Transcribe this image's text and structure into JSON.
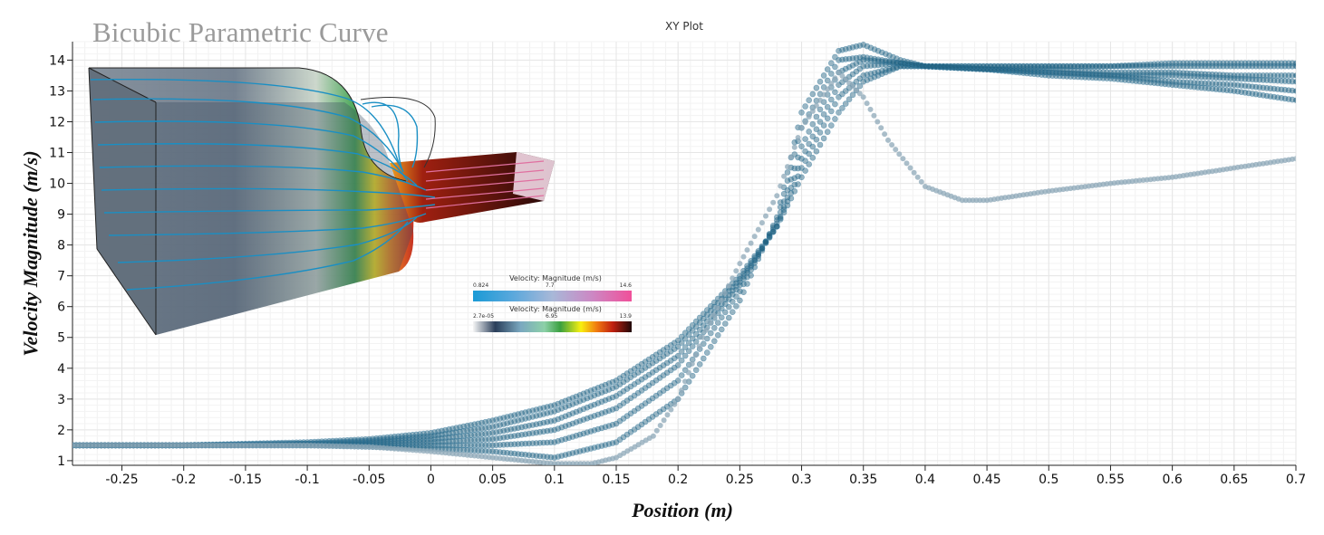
{
  "overlay_title": "Bicubic Parametric Curve",
  "plot_title": "XY Plot",
  "xlabel": "Position (m)",
  "ylabel": "Velocity Magnitude (m/s)",
  "legends": [
    {
      "title": "Velocity: Magnitude (m/s)",
      "min": "0.824",
      "mid": "7.7",
      "max": "14.6"
    },
    {
      "title": "Velocity: Magnitude (m/s)",
      "min": "2.7e-05",
      "mid": "6.95",
      "max": "13.9"
    }
  ],
  "colors": {
    "series": "#1f5f7e",
    "grid": "#e6e6e6",
    "points_light": "#8ea8b8"
  },
  "chart_data": {
    "type": "scatter",
    "title": "XY Plot",
    "xlabel": "Position (m)",
    "ylabel": "Velocity Magnitude (m/s)",
    "xlim": [
      -0.29,
      0.7
    ],
    "ylim": [
      0.85,
      14.6
    ],
    "x_ticks": [
      -0.25,
      -0.2,
      -0.15,
      -0.1,
      -0.05,
      0,
      0.05,
      0.1,
      0.15,
      0.2,
      0.25,
      0.3,
      0.35,
      0.4,
      0.45,
      0.5,
      0.55,
      0.6,
      0.65,
      0.7
    ],
    "y_ticks": [
      1,
      2,
      3,
      4,
      5,
      6,
      7,
      8,
      9,
      10,
      11,
      12,
      13,
      14
    ],
    "grid": true,
    "series": [
      {
        "x": [
          -0.29,
          -0.2,
          -0.1,
          -0.05,
          0,
          0.05,
          0.1,
          0.15,
          0.2,
          0.25,
          0.28,
          0.3,
          0.33,
          0.35,
          0.38,
          0.4,
          0.45,
          0.5,
          0.55,
          0.6,
          0.65,
          0.7
        ],
        "y": [
          1.5,
          1.5,
          1.6,
          1.7,
          1.9,
          2.3,
          2.8,
          3.6,
          4.9,
          7.0,
          8.6,
          10.2,
          12.3,
          13.3,
          13.8,
          13.8,
          13.7,
          13.5,
          13.4,
          13.2,
          13.0,
          12.7
        ]
      },
      {
        "x": [
          -0.29,
          -0.2,
          -0.1,
          -0.05,
          0,
          0.05,
          0.1,
          0.15,
          0.2,
          0.25,
          0.28,
          0.3,
          0.33,
          0.35,
          0.38,
          0.4,
          0.45,
          0.5,
          0.55,
          0.6,
          0.65,
          0.7
        ],
        "y": [
          1.5,
          1.5,
          1.55,
          1.65,
          1.8,
          2.1,
          2.6,
          3.4,
          4.7,
          6.9,
          8.6,
          10.5,
          12.8,
          13.5,
          13.8,
          13.8,
          13.7,
          13.6,
          13.5,
          13.3,
          13.2,
          13.0
        ]
      },
      {
        "x": [
          -0.29,
          -0.2,
          -0.1,
          -0.05,
          0,
          0.05,
          0.1,
          0.15,
          0.2,
          0.25,
          0.28,
          0.3,
          0.33,
          0.35,
          0.38,
          0.4,
          0.45,
          0.5,
          0.55,
          0.6,
          0.65,
          0.7
        ],
        "y": [
          1.5,
          1.5,
          1.55,
          1.6,
          1.7,
          1.9,
          2.3,
          3.1,
          4.4,
          6.8,
          8.6,
          10.8,
          13.2,
          13.8,
          13.9,
          13.8,
          13.7,
          13.6,
          13.5,
          13.5,
          13.4,
          13.3
        ]
      },
      {
        "x": [
          -0.29,
          -0.2,
          -0.1,
          -0.05,
          0,
          0.05,
          0.1,
          0.15,
          0.2,
          0.25,
          0.28,
          0.3,
          0.33,
          0.35,
          0.38,
          0.4,
          0.45,
          0.5,
          0.55,
          0.6,
          0.65,
          0.7
        ],
        "y": [
          1.5,
          1.5,
          1.55,
          1.55,
          1.6,
          1.7,
          2.0,
          2.7,
          4.1,
          6.7,
          8.7,
          11.2,
          13.6,
          14.0,
          13.9,
          13.8,
          13.7,
          13.7,
          13.6,
          13.6,
          13.5,
          13.5
        ]
      },
      {
        "x": [
          -0.29,
          -0.2,
          -0.1,
          -0.05,
          0,
          0.05,
          0.1,
          0.15,
          0.2,
          0.25,
          0.28,
          0.3,
          0.33,
          0.35,
          0.38,
          0.4,
          0.45,
          0.5,
          0.55,
          0.6,
          0.65,
          0.7
        ],
        "y": [
          1.5,
          1.5,
          1.5,
          1.5,
          1.5,
          1.5,
          1.6,
          2.2,
          3.6,
          6.5,
          8.8,
          11.8,
          14.0,
          14.1,
          13.9,
          13.8,
          13.8,
          13.8,
          13.8,
          13.8,
          13.8,
          13.8
        ]
      },
      {
        "x": [
          -0.29,
          -0.2,
          -0.1,
          -0.05,
          0,
          0.05,
          0.1,
          0.15,
          0.2,
          0.25,
          0.28,
          0.3,
          0.33,
          0.35,
          0.38,
          0.4,
          0.45,
          0.5,
          0.55,
          0.6,
          0.65,
          0.7
        ],
        "y": [
          1.5,
          1.5,
          1.5,
          1.45,
          1.4,
          1.3,
          1.1,
          1.6,
          3.0,
          6.2,
          8.9,
          12.3,
          14.3,
          14.5,
          14.0,
          13.8,
          13.8,
          13.8,
          13.8,
          13.9,
          13.9,
          13.9
        ]
      },
      {
        "x": [
          -0.29,
          -0.2,
          -0.1,
          -0.05,
          0,
          0.05,
          0.1,
          0.13,
          0.15,
          0.18,
          0.2,
          0.22,
          0.25,
          0.28,
          0.3,
          0.33,
          0.35,
          0.37,
          0.4,
          0.43,
          0.45,
          0.5,
          0.55,
          0.6,
          0.65,
          0.7
        ],
        "y": [
          1.5,
          1.5,
          1.5,
          1.45,
          1.3,
          1.1,
          0.9,
          0.9,
          1.1,
          1.8,
          3.0,
          5.0,
          7.4,
          9.6,
          11.8,
          13.6,
          12.8,
          11.4,
          9.9,
          9.45,
          9.45,
          9.75,
          10.0,
          10.2,
          10.5,
          10.8
        ]
      }
    ]
  }
}
